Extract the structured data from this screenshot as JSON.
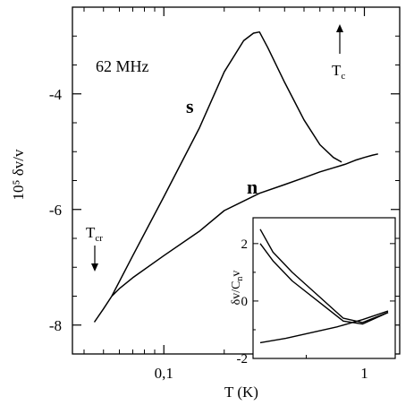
{
  "chart_data": [
    {
      "type": "line",
      "xscale": "log",
      "xlim": [
        0.035,
        1.5
      ],
      "ylim": [
        -8.5,
        -2.5
      ],
      "xlabel": "T (K)",
      "ylabel": "10⁵ δv/v",
      "xticks": [
        {
          "value": 0.1,
          "label": "0,1"
        },
        {
          "value": 1,
          "label": "1"
        }
      ],
      "yticks": [
        {
          "value": -8,
          "label": "-8"
        },
        {
          "value": -6,
          "label": "-6"
        },
        {
          "value": -4,
          "label": "-4"
        }
      ],
      "annotations": {
        "frequency": "62 MHz",
        "s_label": "s",
        "n_label": "n",
        "tc_label": "T",
        "tc_sub": "c",
        "tcr_label": "T",
        "tcr_sub": "cr"
      },
      "series": [
        {
          "name": "s",
          "x": [
            0.045,
            0.05,
            0.055,
            0.07,
            0.1,
            0.15,
            0.2,
            0.25,
            0.28,
            0.3,
            0.33,
            0.4,
            0.5,
            0.6,
            0.7,
            0.77
          ],
          "y": [
            -7.95,
            -7.72,
            -7.5,
            -6.8,
            -5.78,
            -4.6,
            -3.62,
            -3.08,
            -2.95,
            -2.93,
            -3.2,
            -3.8,
            -4.45,
            -4.88,
            -5.1,
            -5.18
          ]
        },
        {
          "name": "n",
          "x": [
            0.055,
            0.06,
            0.07,
            0.1,
            0.15,
            0.2,
            0.3,
            0.4,
            0.5,
            0.6,
            0.7,
            0.8,
            0.9,
            1.0,
            1.1,
            1.17
          ],
          "y": [
            -7.5,
            -7.37,
            -7.18,
            -6.8,
            -6.38,
            -6.02,
            -5.72,
            -5.57,
            -5.45,
            -5.35,
            -5.28,
            -5.22,
            -5.15,
            -5.1,
            -5.06,
            -5.04
          ]
        }
      ]
    },
    {
      "type": "line",
      "inset": true,
      "ylabel": "δv/C",
      "ylabel_sub": "n",
      "ylabel_tail": "v",
      "ylim": [
        -2,
        2.9
      ],
      "yticks": [
        {
          "value": 2,
          "label": "2"
        },
        {
          "value": 0,
          "label": "0"
        },
        {
          "value": -2,
          "label": "-2"
        }
      ],
      "series": [
        {
          "name": "upper",
          "x": [
            0,
            0.1,
            0.25,
            0.45,
            0.65,
            0.8,
            1
          ],
          "y": [
            2.5,
            1.7,
            1.0,
            0.2,
            -0.6,
            -0.75,
            -0.4
          ]
        },
        {
          "name": "lower",
          "x": [
            0,
            0.1,
            0.25,
            0.45,
            0.65,
            0.8,
            1
          ],
          "y": [
            2.0,
            1.4,
            0.7,
            0.0,
            -0.7,
            -0.8,
            -0.4
          ]
        },
        {
          "name": "base",
          "x": [
            0,
            0.2,
            0.4,
            0.6,
            0.8,
            1
          ],
          "y": [
            -1.45,
            -1.3,
            -1.1,
            -0.9,
            -0.65,
            -0.35
          ]
        }
      ]
    }
  ]
}
